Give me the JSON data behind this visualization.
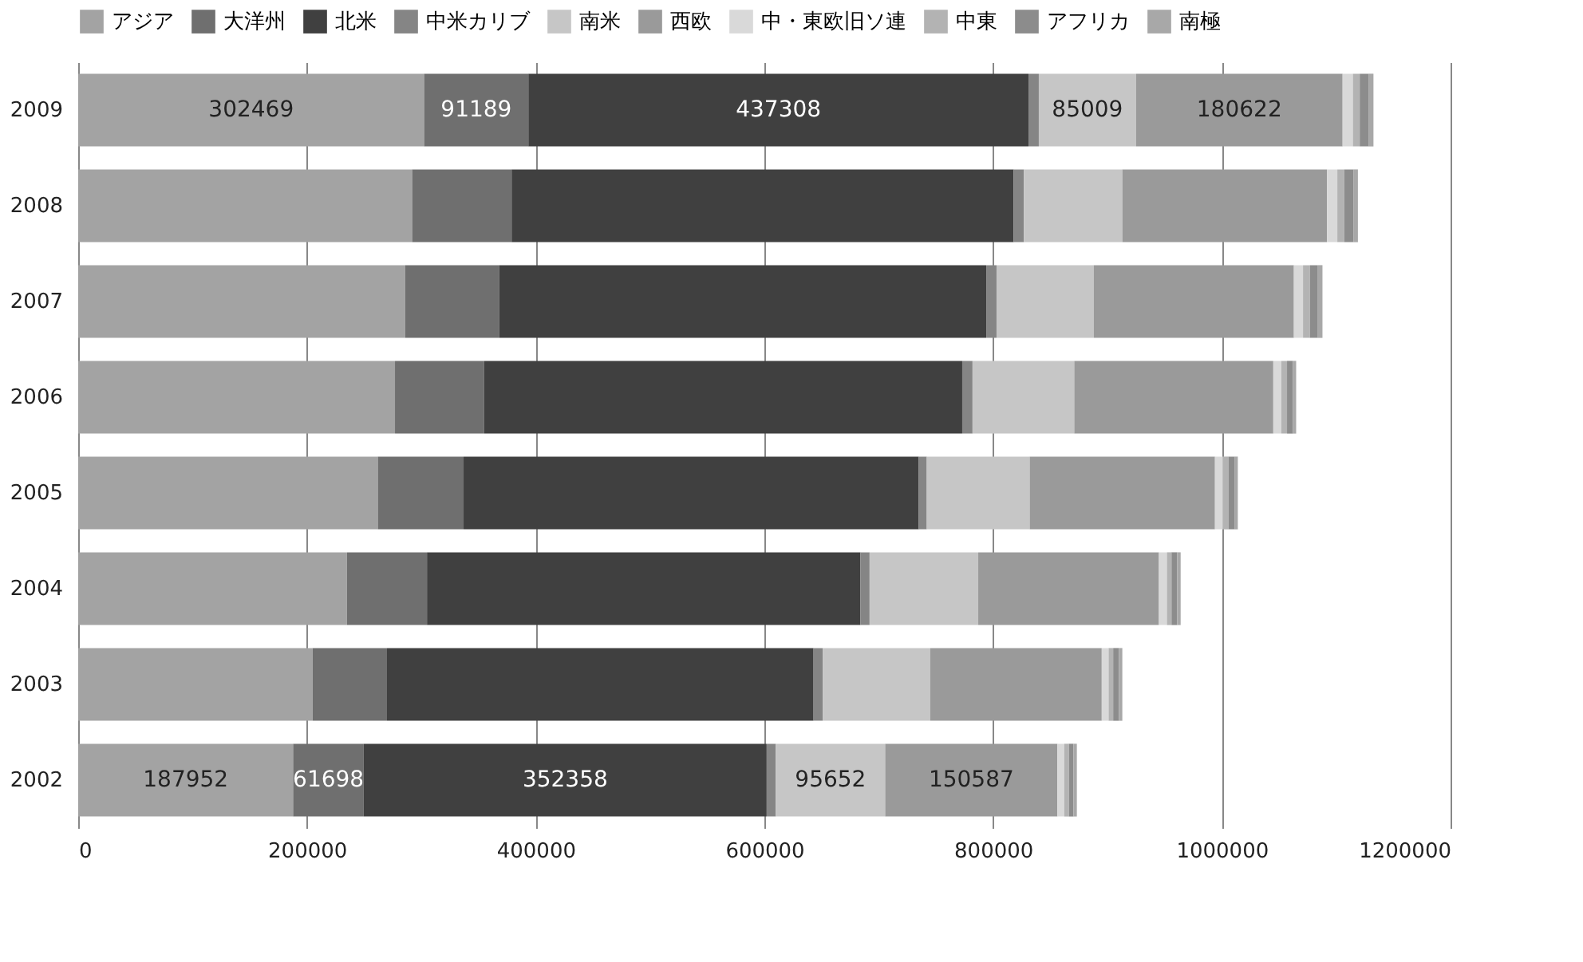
{
  "chart_data": {
    "type": "bar",
    "orientation": "horizontal",
    "stacked": true,
    "categories": [
      "2009",
      "2008",
      "2007",
      "2006",
      "2005",
      "2004",
      "2003",
      "2002"
    ],
    "series": [
      {
        "name": "アジア",
        "color": "#a3a3a3",
        "values": [
          302469,
          292000,
          286000,
          277000,
          262000,
          235000,
          205000,
          187952
        ],
        "value_labels": [
          "302469",
          null,
          null,
          null,
          null,
          null,
          null,
          "187952"
        ]
      },
      {
        "name": "大洋州",
        "color": "#6f6f6f",
        "values": [
          91189,
          87000,
          82000,
          78000,
          75000,
          70000,
          65000,
          61698
        ],
        "value_labels": [
          "91189",
          null,
          null,
          null,
          null,
          null,
          null,
          "61698"
        ]
      },
      {
        "name": "北米",
        "color": "#404040",
        "values": [
          437308,
          439000,
          426000,
          418000,
          398000,
          379000,
          373000,
          352358
        ],
        "value_labels": [
          "437308",
          null,
          null,
          null,
          null,
          null,
          null,
          "352358"
        ]
      },
      {
        "name": "中米カリブ",
        "color": "#858585",
        "values": [
          9000,
          9000,
          9000,
          9000,
          7000,
          8000,
          8000,
          8000
        ]
      },
      {
        "name": "南米",
        "color": "#c6c6c6",
        "values": [
          85009,
          86000,
          85000,
          89000,
          90000,
          95000,
          94000,
          95652
        ],
        "value_labels": [
          "85009",
          null,
          null,
          null,
          null,
          null,
          null,
          "95652"
        ]
      },
      {
        "name": "西欧",
        "color": "#9a9a9a",
        "values": [
          180622,
          179000,
          175000,
          174000,
          162000,
          158000,
          150000,
          150587
        ],
        "value_labels": [
          "180622",
          null,
          null,
          null,
          null,
          null,
          null,
          "150587"
        ]
      },
      {
        "name": "中・東欧旧ソ連",
        "color": "#d9d9d9",
        "values": [
          9000,
          9000,
          8000,
          7000,
          7000,
          7000,
          6000,
          6000
        ]
      },
      {
        "name": "中東",
        "color": "#b3b3b3",
        "values": [
          6000,
          6000,
          6000,
          5000,
          5000,
          4000,
          4000,
          4000
        ]
      },
      {
        "name": "アフリカ",
        "color": "#8c8c8c",
        "values": [
          8000,
          8000,
          7000,
          5000,
          5000,
          5000,
          5000,
          4000
        ]
      },
      {
        "name": "南極",
        "color": "#a8a8a8",
        "values": [
          4000,
          4000,
          4000,
          3000,
          3000,
          3000,
          3000,
          3000
        ]
      }
    ],
    "xlim": [
      0,
      1200000
    ],
    "xticks": [
      0,
      200000,
      400000,
      600000,
      800000,
      1000000,
      1200000
    ],
    "grid": "x",
    "legend": "top"
  }
}
